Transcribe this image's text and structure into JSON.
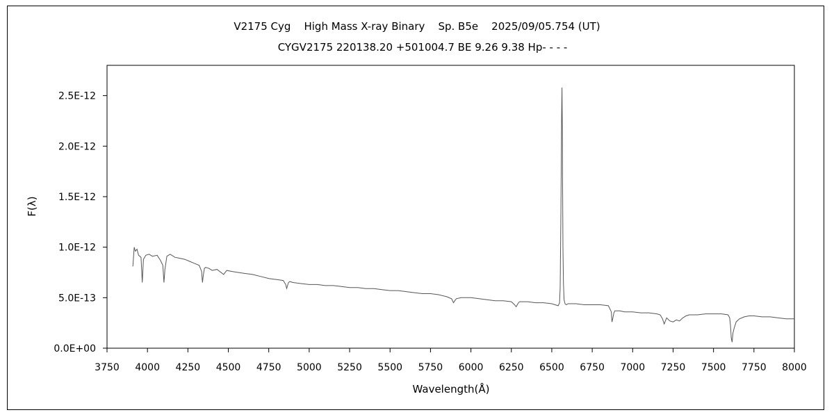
{
  "chart_data": {
    "type": "line",
    "title": "V2175 Cyg    High Mass X-ray Binary    Sp. B5e    2025/09/05.754 (UT)",
    "subtitle": "CYGV2175 220138.20 +501004.7 BE 9.26 9.38 Hp- - - -",
    "xlabel": "Wavelength(Å)",
    "ylabel": "F(λ)",
    "xlim": [
      3750,
      8000
    ],
    "ylim": [
      0,
      2.8e-12
    ],
    "x_ticks": [
      3750,
      4000,
      4250,
      4500,
      4750,
      5000,
      5250,
      5500,
      5750,
      6000,
      6250,
      6500,
      6750,
      7000,
      7250,
      7500,
      7750,
      8000
    ],
    "x_tick_labels": [
      "3750",
      "4000",
      "4250",
      "4500",
      "4750",
      "5000",
      "5250",
      "5500",
      "5750",
      "6000",
      "6250",
      "6500",
      "6750",
      "7000",
      "7250",
      "7500",
      "7750",
      "8000"
    ],
    "y_ticks": [
      0,
      5e-13,
      1e-12,
      1.5e-12,
      2e-12,
      2.5e-12
    ],
    "y_tick_labels": [
      "0.0E+00",
      "5.0E-13",
      "1.0E-12",
      "1.5E-12",
      "2.0E-12",
      "2.5E-12"
    ],
    "grid": false,
    "legend": "none",
    "line_color": "#555555",
    "series": [
      {
        "x": [
          3910,
          3918,
          3925,
          3935,
          3945,
          3960,
          3968,
          3975,
          3990,
          4010,
          4030,
          4060,
          4080,
          4095,
          4102,
          4108,
          4120,
          4140,
          4170,
          4200,
          4230,
          4260,
          4290,
          4320,
          4335,
          4340,
          4345,
          4352,
          4360,
          4380,
          4400,
          4430,
          4471,
          4490,
          4520,
          4560,
          4600,
          4650,
          4700,
          4750,
          4800,
          4840,
          4855,
          4861,
          4866,
          4872,
          4880,
          4900,
          4950,
          5000,
          5050,
          5100,
          5150,
          5200,
          5250,
          5300,
          5350,
          5400,
          5450,
          5500,
          5550,
          5600,
          5650,
          5700,
          5750,
          5800,
          5850,
          5880,
          5892,
          5900,
          5910,
          5940,
          5980,
          6000,
          6050,
          6100,
          6150,
          6200,
          6250,
          6270,
          6280,
          6290,
          6300,
          6350,
          6400,
          6450,
          6500,
          6520,
          6540,
          6548,
          6552,
          6556,
          6559,
          6561,
          6563,
          6565,
          6567,
          6569,
          6572,
          6576,
          6582,
          6590,
          6600,
          6650,
          6700,
          6750,
          6800,
          6850,
          6868,
          6872,
          6878,
          6884,
          6890,
          6920,
          6950,
          7000,
          7050,
          7100,
          7150,
          7170,
          7185,
          7195,
          7200,
          7210,
          7230,
          7250,
          7270,
          7290,
          7310,
          7330,
          7350,
          7400,
          7450,
          7500,
          7550,
          7590,
          7600,
          7605,
          7610,
          7615,
          7620,
          7628,
          7640,
          7660,
          7690,
          7720,
          7750,
          7800,
          7850,
          7900,
          7950,
          8000
        ],
        "y": [
          8.1e-13,
          1e-12,
          9.6e-13,
          9.8e-13,
          9.2e-13,
          9e-13,
          6.5e-13,
          8.8e-13,
          9.2e-13,
          9.3e-13,
          9.1e-13,
          9.2e-13,
          8.7e-13,
          8.2e-13,
          6.5e-13,
          7.8e-13,
          9.1e-13,
          9.3e-13,
          9e-13,
          8.9e-13,
          8.8e-13,
          8.6e-13,
          8.4e-13,
          8.2e-13,
          7.6e-13,
          6.5e-13,
          7.2e-13,
          7.9e-13,
          8e-13,
          7.9e-13,
          7.7e-13,
          7.8e-13,
          7.3e-13,
          7.7e-13,
          7.6e-13,
          7.5e-13,
          7.4e-13,
          7.3e-13,
          7.1e-13,
          6.9e-13,
          6.8e-13,
          6.7e-13,
          6.3e-13,
          5.9e-13,
          6.2e-13,
          6.5e-13,
          6.6e-13,
          6.5e-13,
          6.4e-13,
          6.3e-13,
          6.3e-13,
          6.2e-13,
          6.2e-13,
          6.1e-13,
          6e-13,
          6e-13,
          5.9e-13,
          5.9e-13,
          5.8e-13,
          5.7e-13,
          5.7e-13,
          5.6e-13,
          5.5e-13,
          5.4e-13,
          5.4e-13,
          5.3e-13,
          5.1e-13,
          4.9e-13,
          4.5e-13,
          4.7e-13,
          4.9e-13,
          5e-13,
          5e-13,
          5e-13,
          4.9e-13,
          4.8e-13,
          4.7e-13,
          4.7e-13,
          4.6e-13,
          4.3e-13,
          4.1e-13,
          4.4e-13,
          4.6e-13,
          4.6e-13,
          4.5e-13,
          4.5e-13,
          4.4e-13,
          4.3e-13,
          4.2e-13,
          4.5e-13,
          6e-13,
          1.3e-12,
          1.9e-12,
          2.3e-12,
          2.58e-12,
          2.2e-12,
          1.6e-12,
          1e-12,
          6.5e-13,
          4.8e-13,
          4.4e-13,
          4.3e-13,
          4.4e-13,
          4.4e-13,
          4.3e-13,
          4.3e-13,
          4.3e-13,
          4.2e-13,
          3.6e-13,
          2.6e-13,
          3e-13,
          3.5e-13,
          3.7e-13,
          3.7e-13,
          3.6e-13,
          3.6e-13,
          3.5e-13,
          3.5e-13,
          3.4e-13,
          3.3e-13,
          2.9e-13,
          2.4e-13,
          2.6e-13,
          3e-13,
          2.7e-13,
          2.6e-13,
          2.8e-13,
          2.7e-13,
          3e-13,
          3.2e-13,
          3.3e-13,
          3.3e-13,
          3.4e-13,
          3.4e-13,
          3.4e-13,
          3.3e-13,
          3e-13,
          2.2e-13,
          1e-13,
          6e-14,
          1.5e-13,
          2e-13,
          2.6e-13,
          2.9e-13,
          3.1e-13,
          3.2e-13,
          3.2e-13,
          3.1e-13,
          3.1e-13,
          3e-13,
          2.9e-13,
          2.9e-13
        ]
      }
    ]
  }
}
